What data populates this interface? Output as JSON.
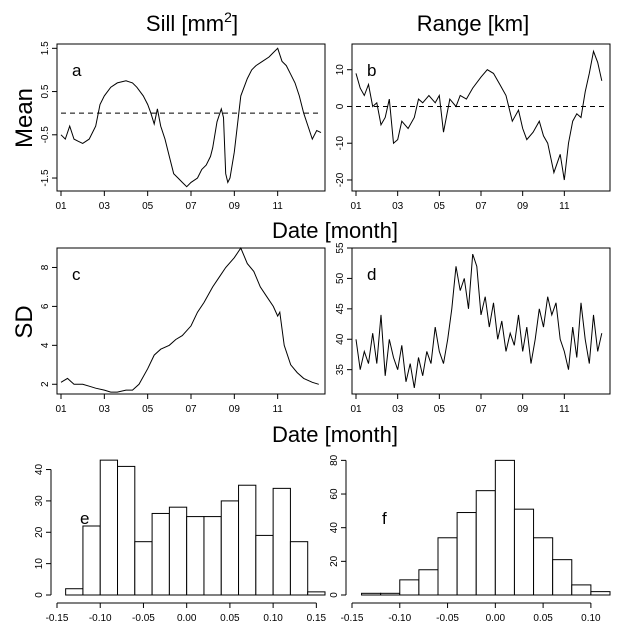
{
  "titles": {
    "col_left": "Sill [mm",
    "col_left_sup": "2",
    "col_left_end": "]",
    "col_right": "Range [km]",
    "row_mean": "Mean",
    "row_sd": "SD",
    "xlabel": "Date [month]"
  },
  "chart_data": [
    {
      "panel": "a",
      "type": "line",
      "ylim": [
        -1.8,
        1.6
      ],
      "yticks": [
        -1.5,
        -0.5,
        0.5,
        1.5
      ],
      "yticklabels": [
        "-1.5",
        "-0.5",
        "0.5",
        "1.5"
      ],
      "xticklabels": [
        "01",
        "03",
        "05",
        "07",
        "09",
        "11"
      ],
      "ref_line": 0,
      "x": [
        0,
        0.2,
        0.4,
        0.6,
        0.8,
        1.0,
        1.3,
        1.6,
        1.8,
        2.0,
        2.3,
        2.6,
        3.0,
        3.3,
        3.5,
        3.8,
        4.0,
        4.15,
        4.3,
        4.45,
        4.6,
        4.8,
        5.0,
        5.2,
        5.4,
        5.6,
        5.8,
        6.0,
        6.3,
        6.5,
        6.7,
        6.9,
        7.0,
        7.2,
        7.4,
        7.5,
        7.6,
        7.7,
        7.8,
        8.0,
        8.3,
        8.6,
        8.8,
        9.0,
        9.3,
        9.6,
        9.8,
        10.0,
        10.2,
        10.4,
        10.6,
        10.8,
        11.0,
        11.2,
        11.4,
        11.6,
        11.8,
        12.0
      ],
      "y": [
        -0.5,
        -0.6,
        -0.3,
        -0.6,
        -0.65,
        -0.7,
        -0.6,
        -0.3,
        0.2,
        0.4,
        0.6,
        0.7,
        0.75,
        0.7,
        0.6,
        0.4,
        0.2,
        0.0,
        -0.25,
        0.1,
        -0.3,
        -0.6,
        -1.0,
        -1.4,
        -1.5,
        -1.6,
        -1.7,
        -1.6,
        -1.5,
        -1.3,
        -1.2,
        -1.0,
        -0.8,
        -0.2,
        0.1,
        -0.1,
        -1.4,
        -1.6,
        -1.5,
        -0.9,
        0.4,
        0.8,
        1.0,
        1.1,
        1.2,
        1.3,
        1.4,
        1.5,
        1.2,
        1.1,
        0.9,
        0.7,
        0.4,
        0.0,
        -0.3,
        -0.6,
        -0.4,
        -0.45
      ]
    },
    {
      "panel": "b",
      "type": "line",
      "ylim": [
        -23,
        17
      ],
      "yticks": [
        -20,
        -10,
        0,
        10
      ],
      "yticklabels": [
        "-20",
        "-10",
        "0",
        "10"
      ],
      "xticklabels": [
        "01",
        "03",
        "05",
        "07",
        "09",
        "11"
      ],
      "ref_line": 0,
      "x": [
        0,
        0.2,
        0.4,
        0.6,
        0.8,
        1.0,
        1.2,
        1.4,
        1.6,
        1.8,
        2.0,
        2.2,
        2.5,
        2.8,
        3.0,
        3.2,
        3.5,
        3.8,
        4.0,
        4.2,
        4.5,
        4.8,
        5.0,
        5.3,
        5.6,
        6.0,
        6.3,
        6.6,
        6.9,
        7.2,
        7.5,
        7.8,
        8.0,
        8.2,
        8.5,
        8.8,
        9.0,
        9.2,
        9.5,
        9.8,
        10.0,
        10.2,
        10.4,
        10.6,
        10.8,
        11.0,
        11.2,
        11.4,
        11.6,
        11.8
      ],
      "y": [
        9,
        5,
        3,
        6,
        0,
        1,
        -5,
        -3,
        2,
        -10,
        -9,
        -4,
        -6,
        -3,
        2,
        1,
        3,
        1,
        3,
        -7,
        2,
        0,
        3,
        2,
        5,
        8,
        10,
        9,
        6,
        3,
        -4,
        -1,
        -6,
        -9,
        -7,
        -4,
        -8,
        -10,
        -18,
        -13,
        -20,
        -10,
        -4,
        -2,
        -3,
        4,
        9,
        15,
        12,
        7
      ]
    },
    {
      "panel": "c",
      "type": "line",
      "ylim": [
        1.5,
        9
      ],
      "yticks": [
        2,
        4,
        6,
        8
      ],
      "yticklabels": [
        "2",
        "4",
        "6",
        "8"
      ],
      "xticklabels": [
        "01",
        "03",
        "05",
        "07",
        "09",
        "11"
      ],
      "x": [
        0,
        0.3,
        0.6,
        1.0,
        1.3,
        1.6,
        2.0,
        2.3,
        2.6,
        3.0,
        3.3,
        3.6,
        4.0,
        4.3,
        4.6,
        5.0,
        5.3,
        5.6,
        6.0,
        6.3,
        6.6,
        7.0,
        7.3,
        7.6,
        8.0,
        8.3,
        8.6,
        8.9,
        9.2,
        9.5,
        9.8,
        10.0,
        10.1,
        10.3,
        10.6,
        10.9,
        11.2,
        11.6,
        11.9
      ],
      "y": [
        2.1,
        2.3,
        2.0,
        2.0,
        1.9,
        1.8,
        1.7,
        1.6,
        1.6,
        1.7,
        1.7,
        2.0,
        2.8,
        3.5,
        3.8,
        4.0,
        4.3,
        4.5,
        5.0,
        5.7,
        6.2,
        7.0,
        7.5,
        8.0,
        8.5,
        9.0,
        8.2,
        7.8,
        7.0,
        6.5,
        6.0,
        5.5,
        5.7,
        4.0,
        3.0,
        2.6,
        2.3,
        2.1,
        2.0
      ]
    },
    {
      "panel": "d",
      "type": "line",
      "ylim": [
        31,
        55
      ],
      "yticks": [
        35,
        40,
        45,
        50,
        55
      ],
      "yticklabels": [
        "35",
        "40",
        "45",
        "50",
        "55"
      ],
      "xticklabels": [
        "01",
        "03",
        "05",
        "07",
        "09",
        "11"
      ],
      "x": [
        0,
        0.2,
        0.4,
        0.6,
        0.8,
        1.0,
        1.2,
        1.4,
        1.6,
        1.8,
        2.0,
        2.2,
        2.4,
        2.6,
        2.8,
        3.0,
        3.2,
        3.4,
        3.6,
        3.8,
        4.0,
        4.2,
        4.4,
        4.6,
        4.8,
        5.0,
        5.2,
        5.4,
        5.6,
        5.8,
        6.0,
        6.2,
        6.4,
        6.6,
        6.8,
        7.0,
        7.2,
        7.4,
        7.6,
        7.8,
        8.0,
        8.2,
        8.4,
        8.6,
        8.8,
        9.0,
        9.2,
        9.4,
        9.6,
        9.8,
        10.0,
        10.2,
        10.4,
        10.6,
        10.8,
        11.0,
        11.2,
        11.4,
        11.6,
        11.8
      ],
      "y": [
        40,
        35,
        38,
        36,
        41,
        36,
        44,
        34,
        40,
        37,
        35,
        39,
        33,
        36,
        32,
        37,
        34,
        38,
        36,
        42,
        38,
        36,
        40,
        45,
        52,
        48,
        50,
        45,
        54,
        52,
        44,
        47,
        42,
        46,
        40,
        43,
        38,
        41,
        39,
        44,
        38,
        42,
        36,
        40,
        45,
        42,
        47,
        44,
        46,
        40,
        38,
        35,
        42,
        37,
        46,
        40,
        36,
        44,
        38,
        41
      ]
    },
    {
      "panel": "e",
      "type": "bar",
      "xlim": [
        -0.15,
        0.16
      ],
      "bin_edges": [
        -0.14,
        -0.12,
        -0.1,
        -0.08,
        -0.06,
        -0.04,
        -0.02,
        0.0,
        0.02,
        0.04,
        0.06,
        0.08,
        0.1,
        0.12,
        0.14,
        0.16
      ],
      "values": [
        2,
        22,
        43,
        41,
        17,
        26,
        28,
        25,
        25,
        30,
        35,
        19,
        34,
        17,
        1
      ],
      "ylim": [
        0,
        44
      ],
      "yticks": [
        0,
        10,
        20,
        30,
        40
      ],
      "yticklabels": [
        "0",
        "10",
        "20",
        "30",
        "40"
      ],
      "xticks": [
        -0.15,
        -0.1,
        -0.05,
        0.0,
        0.05,
        0.1,
        0.15
      ],
      "xticklabels": [
        "-0.15",
        "-0.10",
        "-0.05",
        "0.00",
        "0.05",
        "0.10",
        "0.15"
      ]
    },
    {
      "panel": "f",
      "type": "bar",
      "xlim": [
        -0.15,
        0.12
      ],
      "bin_edges": [
        -0.14,
        -0.12,
        -0.1,
        -0.08,
        -0.06,
        -0.04,
        -0.02,
        0.0,
        0.02,
        0.04,
        0.06,
        0.08,
        0.1,
        0.12
      ],
      "values": [
        1,
        1,
        9,
        15,
        34,
        49,
        62,
        80,
        51,
        34,
        21,
        6,
        2
      ],
      "ylim": [
        0,
        82
      ],
      "yticks": [
        0,
        20,
        40,
        60,
        80
      ],
      "yticklabels": [
        "0",
        "20",
        "40",
        "60",
        "80"
      ],
      "xticks": [
        -0.15,
        -0.1,
        -0.05,
        0.0,
        0.05,
        0.1
      ],
      "xticklabels": [
        "-0.15",
        "-0.10",
        "-0.05",
        "0.00",
        "0.05",
        "0.10"
      ]
    }
  ]
}
